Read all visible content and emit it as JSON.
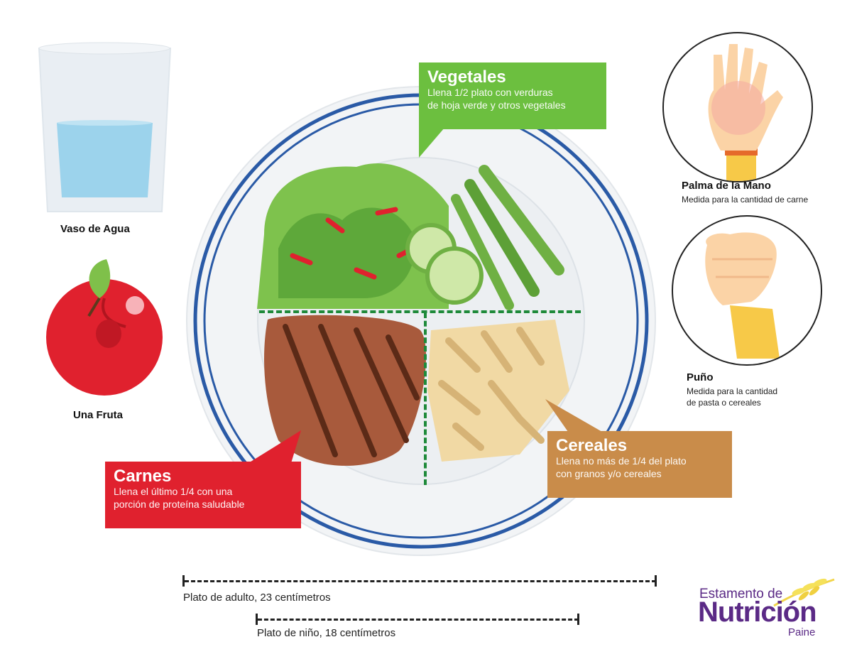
{
  "left": {
    "water_label": "Vaso de Agua",
    "fruit_label": "Una Fruta"
  },
  "right": {
    "palm_title": "Palma de la Mano",
    "palm_desc": "Medida para la cantidad de carne",
    "fist_title": "Puño",
    "fist_desc_1": "Medida para la cantidad",
    "fist_desc_2": "de pasta o cereales"
  },
  "callouts": {
    "vegetales": {
      "title": "Vegetales",
      "line1": "Llena 1/2 plato con verduras",
      "line2": "de hoja verde y otros vegetales",
      "color": "#6cbf3f"
    },
    "carnes": {
      "title": "Carnes",
      "line1": "Llena el último 1/4 con una",
      "line2": "porción de proteína saludable",
      "color": "#e0212e"
    },
    "cereales": {
      "title": "Cereales",
      "line1": "Llena no más de 1/4 del plato",
      "line2": "con granos y/o cereales",
      "color": "#c98c4a"
    }
  },
  "measures": {
    "adult": "Plato de adulto, 23 centímetros",
    "child": "Plato de niño, 18 centímetros"
  },
  "logo": {
    "line1": "Estamento de",
    "line2": "Nutrición",
    "line3": "Paine",
    "color": "#5b2a86"
  },
  "icons": [
    "water-glass-icon",
    "apple-icon",
    "plate-icon",
    "palm-hand-icon",
    "fist-icon",
    "wheat-icon"
  ]
}
